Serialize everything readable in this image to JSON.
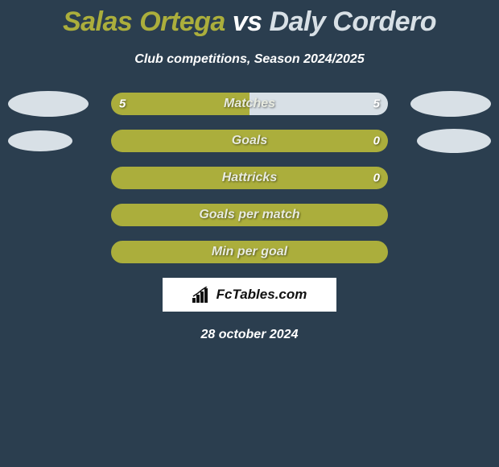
{
  "title": {
    "player1": "Salas Ortega",
    "vs": " vs ",
    "player2": "Daly Cordero",
    "color1": "#abae3c",
    "color_vs": "#ffffff",
    "color2": "#d8e0e6"
  },
  "subtitle": "Club competitions, Season 2024/2025",
  "date": "28 october 2024",
  "watermark_text": "FcTables.com",
  "colors": {
    "background": "#2b3e4f",
    "player1_bar": "#abae3c",
    "player2_bar": "#d8e0e6",
    "empty_bar": "#abae3c",
    "text": "#ffffff",
    "label_text": "#e8ebe0",
    "value_text": "#ffffff"
  },
  "indicators": {
    "row0": {
      "left_w": 100,
      "left_h": 32,
      "right_w": 100,
      "right_h": 32
    },
    "row1": {
      "left_w": 80,
      "left_h": 26,
      "right_w": 92,
      "right_h": 30
    }
  },
  "rows": [
    {
      "label": "Matches",
      "left_val": "5",
      "right_val": "5",
      "left_pct": 50,
      "right_pct": 50,
      "show_indicators": true,
      "empty": false
    },
    {
      "label": "Goals",
      "left_val": "",
      "right_val": "0",
      "left_pct": 100,
      "right_pct": 0,
      "show_indicators": true,
      "empty": false
    },
    {
      "label": "Hattricks",
      "left_val": "",
      "right_val": "0",
      "left_pct": 100,
      "right_pct": 0,
      "show_indicators": false,
      "empty": false
    },
    {
      "label": "Goals per match",
      "left_val": "",
      "right_val": "",
      "left_pct": 0,
      "right_pct": 0,
      "show_indicators": false,
      "empty": true
    },
    {
      "label": "Min per goal",
      "left_val": "",
      "right_val": "",
      "left_pct": 0,
      "right_pct": 0,
      "show_indicators": false,
      "empty": true
    }
  ]
}
